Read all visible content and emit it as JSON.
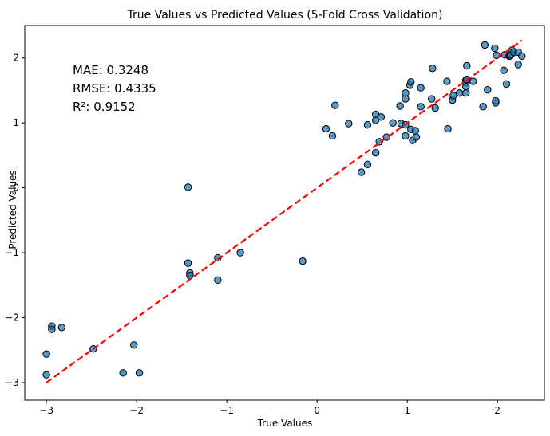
{
  "chart_data": {
    "type": "scatter",
    "title": "True Values vs Predicted Values (5-Fold Cross Validation)",
    "xlabel": "True Values",
    "ylabel": "Predicted Values",
    "xlim": [
      -3.24,
      2.52
    ],
    "ylim": [
      -3.27,
      2.5
    ],
    "xticks": [
      -3,
      -2,
      -1,
      0,
      1,
      2
    ],
    "yticks": [
      -3,
      -2,
      -1,
      0,
      1,
      2
    ],
    "tick_labels_x": [
      "−3",
      "−2",
      "−1",
      "0",
      "1",
      "2"
    ],
    "tick_labels_y": [
      "−3",
      "−2",
      "−1",
      "0",
      "1",
      "2"
    ],
    "grid": false,
    "annotations": [
      "MAE: 0.3248",
      "RMSE: 0.4335",
      "R²: 0.9152"
    ],
    "point_color": "#1f77b4",
    "point_edge_color": "#000000",
    "reference_line": {
      "x": [
        -3.0,
        2.27
      ],
      "y": [
        -3.0,
        2.27
      ],
      "color": "#ff0000",
      "style": "dashed"
    },
    "points": [
      {
        "x": -3.0,
        "y": -2.56
      },
      {
        "x": -3.0,
        "y": -2.88
      },
      {
        "x": -2.94,
        "y": -2.13
      },
      {
        "x": -2.94,
        "y": -2.18
      },
      {
        "x": -2.83,
        "y": -2.15
      },
      {
        "x": -2.48,
        "y": -2.48
      },
      {
        "x": -2.15,
        "y": -2.85
      },
      {
        "x": -2.03,
        "y": -2.42
      },
      {
        "x": -1.97,
        "y": -2.85
      },
      {
        "x": -1.43,
        "y": 0.01
      },
      {
        "x": -1.43,
        "y": -1.16
      },
      {
        "x": -1.41,
        "y": -1.31
      },
      {
        "x": -1.41,
        "y": -1.35
      },
      {
        "x": -1.1,
        "y": -1.08
      },
      {
        "x": -1.1,
        "y": -1.42
      },
      {
        "x": -0.85,
        "y": -1.0
      },
      {
        "x": -0.16,
        "y": -1.13
      },
      {
        "x": 0.1,
        "y": 0.91
      },
      {
        "x": 0.17,
        "y": 0.8
      },
      {
        "x": 0.2,
        "y": 1.27
      },
      {
        "x": 0.35,
        "y": 0.99
      },
      {
        "x": 0.49,
        "y": 0.24
      },
      {
        "x": 0.56,
        "y": 0.36
      },
      {
        "x": 0.56,
        "y": 0.97
      },
      {
        "x": 0.65,
        "y": 1.13
      },
      {
        "x": 0.65,
        "y": 1.04
      },
      {
        "x": 0.65,
        "y": 0.54
      },
      {
        "x": 0.69,
        "y": 0.71
      },
      {
        "x": 0.71,
        "y": 1.09
      },
      {
        "x": 0.77,
        "y": 0.78
      },
      {
        "x": 0.84,
        "y": 1.0
      },
      {
        "x": 0.92,
        "y": 1.26
      },
      {
        "x": 0.93,
        "y": 0.99
      },
      {
        "x": 0.98,
        "y": 0.97
      },
      {
        "x": 0.98,
        "y": 1.37
      },
      {
        "x": 0.98,
        "y": 1.46
      },
      {
        "x": 0.98,
        "y": 0.8
      },
      {
        "x": 1.03,
        "y": 1.58
      },
      {
        "x": 1.04,
        "y": 1.63
      },
      {
        "x": 1.04,
        "y": 0.9
      },
      {
        "x": 1.06,
        "y": 0.73
      },
      {
        "x": 1.09,
        "y": 0.88
      },
      {
        "x": 1.1,
        "y": 0.78
      },
      {
        "x": 1.15,
        "y": 1.54
      },
      {
        "x": 1.15,
        "y": 1.25
      },
      {
        "x": 1.27,
        "y": 1.37
      },
      {
        "x": 1.28,
        "y": 1.84
      },
      {
        "x": 1.31,
        "y": 1.23
      },
      {
        "x": 1.44,
        "y": 1.64
      },
      {
        "x": 1.45,
        "y": 0.91
      },
      {
        "x": 1.5,
        "y": 1.35
      },
      {
        "x": 1.51,
        "y": 1.42
      },
      {
        "x": 1.58,
        "y": 1.46
      },
      {
        "x": 1.65,
        "y": 1.66
      },
      {
        "x": 1.65,
        "y": 1.62
      },
      {
        "x": 1.65,
        "y": 1.56
      },
      {
        "x": 1.65,
        "y": 1.46
      },
      {
        "x": 1.66,
        "y": 1.88
      },
      {
        "x": 1.66,
        "y": 1.67
      },
      {
        "x": 1.73,
        "y": 1.64
      },
      {
        "x": 1.84,
        "y": 1.25
      },
      {
        "x": 1.86,
        "y": 2.2
      },
      {
        "x": 1.89,
        "y": 1.51
      },
      {
        "x": 1.97,
        "y": 2.15
      },
      {
        "x": 1.98,
        "y": 1.31
      },
      {
        "x": 1.98,
        "y": 1.34
      },
      {
        "x": 1.99,
        "y": 2.04
      },
      {
        "x": 2.07,
        "y": 1.81
      },
      {
        "x": 2.08,
        "y": 2.05
      },
      {
        "x": 2.1,
        "y": 1.6
      },
      {
        "x": 2.13,
        "y": 2.03
      },
      {
        "x": 2.14,
        "y": 2.03
      },
      {
        "x": 2.15,
        "y": 2.05
      },
      {
        "x": 2.16,
        "y": 2.12
      },
      {
        "x": 2.18,
        "y": 2.09
      },
      {
        "x": 2.23,
        "y": 2.09
      },
      {
        "x": 2.23,
        "y": 1.9
      },
      {
        "x": 2.27,
        "y": 2.03
      }
    ]
  }
}
